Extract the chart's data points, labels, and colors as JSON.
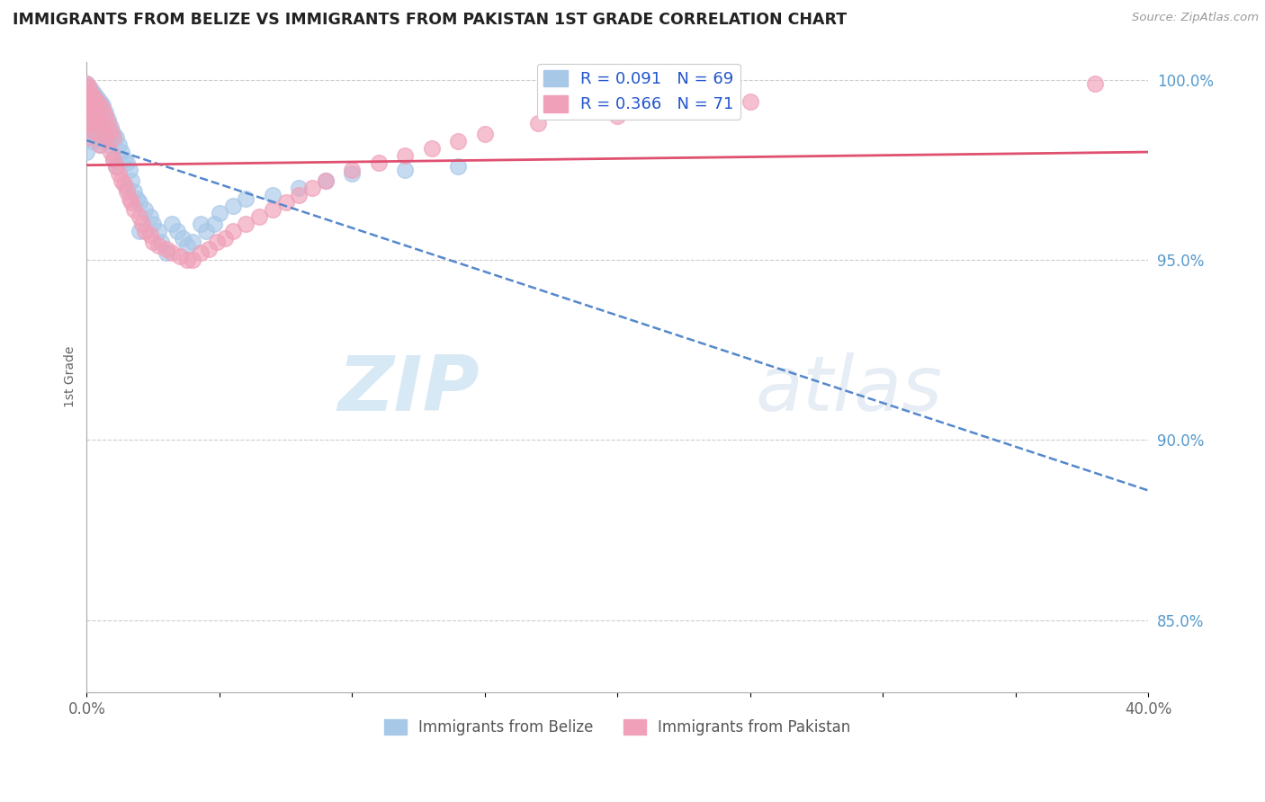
{
  "title": "IMMIGRANTS FROM BELIZE VS IMMIGRANTS FROM PAKISTAN 1ST GRADE CORRELATION CHART",
  "source": "Source: ZipAtlas.com",
  "xlabel_belize": "Immigrants from Belize",
  "xlabel_pakistan": "Immigrants from Pakistan",
  "ylabel": "1st Grade",
  "xlim": [
    0.0,
    0.4
  ],
  "ylim": [
    0.83,
    1.005
  ],
  "xticks": [
    0.0,
    0.05,
    0.1,
    0.15,
    0.2,
    0.25,
    0.3,
    0.35,
    0.4
  ],
  "yticks": [
    0.85,
    0.9,
    0.95,
    1.0
  ],
  "yticklabels": [
    "85.0%",
    "90.0%",
    "95.0%",
    "100.0%"
  ],
  "R_belize": 0.091,
  "N_belize": 69,
  "R_pakistan": 0.366,
  "N_pakistan": 71,
  "color_belize": "#a8c8e8",
  "color_pakistan": "#f0a0b8",
  "line_color_belize": "#5588cc",
  "line_color_pakistan": "#e05070",
  "watermark_zip": "ZIP",
  "watermark_atlas": "atlas",
  "background_color": "#ffffff",
  "grid_color": "#cccccc",
  "belize_x": [
    0.0,
    0.0,
    0.0,
    0.0,
    0.0,
    0.0,
    0.0,
    0.0,
    0.001,
    0.001,
    0.001,
    0.002,
    0.002,
    0.002,
    0.002,
    0.003,
    0.003,
    0.003,
    0.004,
    0.004,
    0.004,
    0.005,
    0.005,
    0.005,
    0.006,
    0.006,
    0.007,
    0.007,
    0.008,
    0.008,
    0.009,
    0.01,
    0.01,
    0.011,
    0.011,
    0.012,
    0.013,
    0.014,
    0.015,
    0.015,
    0.016,
    0.017,
    0.018,
    0.019,
    0.02,
    0.02,
    0.022,
    0.024,
    0.025,
    0.027,
    0.028,
    0.03,
    0.032,
    0.034,
    0.036,
    0.038,
    0.04,
    0.043,
    0.045,
    0.048,
    0.05,
    0.055,
    0.06,
    0.07,
    0.08,
    0.09,
    0.1,
    0.12,
    0.14
  ],
  "belize_y": [
    0.999,
    0.998,
    0.997,
    0.996,
    0.995,
    0.99,
    0.985,
    0.98,
    0.998,
    0.995,
    0.988,
    0.997,
    0.993,
    0.988,
    0.983,
    0.996,
    0.991,
    0.986,
    0.995,
    0.99,
    0.984,
    0.994,
    0.988,
    0.982,
    0.993,
    0.986,
    0.991,
    0.984,
    0.989,
    0.982,
    0.987,
    0.985,
    0.978,
    0.984,
    0.976,
    0.982,
    0.98,
    0.978,
    0.977,
    0.97,
    0.975,
    0.972,
    0.969,
    0.967,
    0.966,
    0.958,
    0.964,
    0.962,
    0.96,
    0.958,
    0.955,
    0.952,
    0.96,
    0.958,
    0.956,
    0.954,
    0.955,
    0.96,
    0.958,
    0.96,
    0.963,
    0.965,
    0.967,
    0.968,
    0.97,
    0.972,
    0.974,
    0.975,
    0.976
  ],
  "pakistan_x": [
    0.0,
    0.0,
    0.0,
    0.0,
    0.0,
    0.0,
    0.0,
    0.001,
    0.001,
    0.001,
    0.002,
    0.002,
    0.002,
    0.003,
    0.003,
    0.003,
    0.004,
    0.004,
    0.005,
    0.005,
    0.005,
    0.006,
    0.006,
    0.007,
    0.007,
    0.008,
    0.009,
    0.009,
    0.01,
    0.01,
    0.011,
    0.012,
    0.013,
    0.014,
    0.015,
    0.016,
    0.017,
    0.018,
    0.02,
    0.021,
    0.022,
    0.024,
    0.025,
    0.027,
    0.03,
    0.032,
    0.035,
    0.038,
    0.04,
    0.043,
    0.046,
    0.049,
    0.052,
    0.055,
    0.06,
    0.065,
    0.07,
    0.075,
    0.08,
    0.085,
    0.09,
    0.1,
    0.11,
    0.12,
    0.13,
    0.14,
    0.15,
    0.17,
    0.2,
    0.25,
    0.38
  ],
  "pakistan_y": [
    0.999,
    0.997,
    0.996,
    0.994,
    0.993,
    0.988,
    0.984,
    0.998,
    0.994,
    0.99,
    0.996,
    0.992,
    0.988,
    0.995,
    0.991,
    0.986,
    0.994,
    0.989,
    0.993,
    0.988,
    0.982,
    0.992,
    0.986,
    0.99,
    0.984,
    0.988,
    0.986,
    0.98,
    0.984,
    0.978,
    0.976,
    0.974,
    0.972,
    0.971,
    0.969,
    0.967,
    0.966,
    0.964,
    0.962,
    0.96,
    0.958,
    0.957,
    0.955,
    0.954,
    0.953,
    0.952,
    0.951,
    0.95,
    0.95,
    0.952,
    0.953,
    0.955,
    0.956,
    0.958,
    0.96,
    0.962,
    0.964,
    0.966,
    0.968,
    0.97,
    0.972,
    0.975,
    0.977,
    0.979,
    0.981,
    0.983,
    0.985,
    0.988,
    0.99,
    0.994,
    0.999
  ]
}
